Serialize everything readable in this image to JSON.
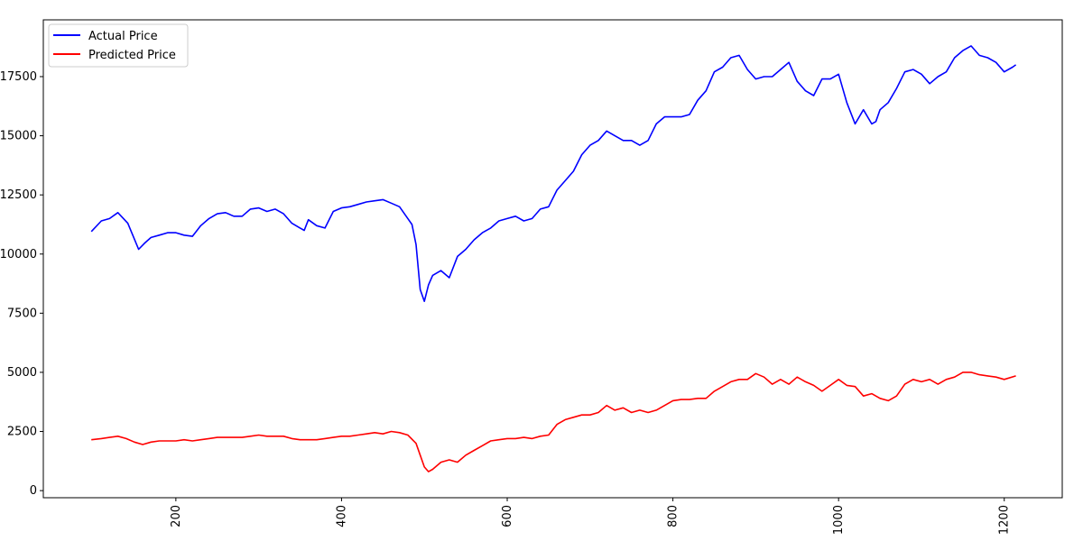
{
  "chart_data": {
    "type": "line",
    "title": "",
    "xlabel": "",
    "ylabel": "",
    "xlim": [
      40,
      1270
    ],
    "ylim": [
      -300,
      19900
    ],
    "x_ticks": [
      200,
      400,
      600,
      800,
      1000,
      1200
    ],
    "x_tick_labels": [
      "200",
      "400",
      "600",
      "800",
      "1000",
      "1200"
    ],
    "y_ticks": [
      0,
      2500,
      5000,
      7500,
      10000,
      12500,
      15000,
      17500
    ],
    "y_tick_labels": [
      "0",
      "2500",
      "5000",
      "7500",
      "10000",
      "12500",
      "15000",
      "17500"
    ],
    "x_tick_rotation": 90,
    "grid": false,
    "legend_position": "top-left",
    "series": [
      {
        "name": "Actual Price",
        "color": "#0000ff",
        "x": [
          98,
          110,
          120,
          130,
          142,
          148,
          155,
          162,
          170,
          180,
          190,
          200,
          210,
          220,
          230,
          240,
          250,
          260,
          270,
          280,
          290,
          300,
          310,
          320,
          330,
          340,
          350,
          355,
          360,
          370,
          380,
          390,
          400,
          410,
          420,
          430,
          440,
          450,
          460,
          470,
          480,
          485,
          490,
          495,
          500,
          505,
          510,
          520,
          530,
          540,
          550,
          560,
          570,
          580,
          590,
          600,
          610,
          620,
          630,
          640,
          650,
          660,
          670,
          680,
          690,
          700,
          710,
          720,
          730,
          740,
          750,
          760,
          770,
          780,
          790,
          800,
          810,
          820,
          830,
          840,
          850,
          860,
          870,
          880,
          890,
          900,
          910,
          920,
          930,
          940,
          950,
          960,
          970,
          980,
          990,
          1000,
          1010,
          1020,
          1030,
          1040,
          1045,
          1050,
          1060,
          1070,
          1080,
          1090,
          1100,
          1110,
          1120,
          1130,
          1140,
          1150,
          1160,
          1170,
          1180,
          1190,
          1200,
          1210,
          1214
        ],
        "y": [
          10950,
          11400,
          11500,
          11750,
          11300,
          10800,
          10200,
          10450,
          10700,
          10800,
          10900,
          10900,
          10800,
          10750,
          11200,
          11500,
          11700,
          11750,
          11600,
          11600,
          11900,
          11950,
          11800,
          11900,
          11700,
          11300,
          11100,
          11000,
          11450,
          11200,
          11100,
          11800,
          11950,
          12000,
          12100,
          12200,
          12250,
          12300,
          12150,
          12000,
          11500,
          11250,
          10400,
          8500,
          8000,
          8700,
          9100,
          9300,
          9000,
          9900,
          10200,
          10600,
          10900,
          11100,
          11400,
          11500,
          11600,
          11400,
          11500,
          11900,
          12000,
          12700,
          13100,
          13500,
          14200,
          14600,
          14800,
          15200,
          15000,
          14800,
          14800,
          14600,
          14800,
          15500,
          15800,
          15800,
          15800,
          15900,
          16500,
          16900,
          17700,
          17900,
          18300,
          18400,
          17800,
          17400,
          17500,
          17500,
          17800,
          18100,
          17300,
          16900,
          16700,
          17400,
          17400,
          17600,
          16400,
          15500,
          16100,
          15500,
          15600,
          16100,
          16400,
          17000,
          17700,
          17800,
          17600,
          17200,
          17500,
          17700,
          18300,
          18600,
          18800,
          18400,
          18300,
          18100,
          17700,
          17900,
          18000
        ]
      },
      {
        "name": "Predicted Price",
        "color": "#ff0000",
        "x": [
          98,
          110,
          120,
          130,
          140,
          150,
          160,
          170,
          180,
          190,
          200,
          210,
          220,
          230,
          240,
          250,
          260,
          270,
          280,
          290,
          300,
          310,
          320,
          330,
          340,
          350,
          360,
          370,
          380,
          390,
          400,
          410,
          420,
          430,
          440,
          450,
          460,
          470,
          480,
          490,
          495,
          500,
          505,
          510,
          520,
          530,
          540,
          550,
          560,
          570,
          580,
          590,
          600,
          610,
          620,
          630,
          640,
          650,
          660,
          670,
          680,
          690,
          700,
          710,
          720,
          730,
          740,
          750,
          760,
          770,
          780,
          790,
          800,
          810,
          820,
          830,
          840,
          850,
          860,
          870,
          880,
          890,
          900,
          910,
          920,
          930,
          940,
          950,
          960,
          970,
          980,
          990,
          1000,
          1010,
          1020,
          1030,
          1040,
          1050,
          1060,
          1070,
          1080,
          1090,
          1100,
          1110,
          1120,
          1130,
          1140,
          1150,
          1160,
          1170,
          1180,
          1190,
          1200,
          1214
        ],
        "y": [
          2150,
          2200,
          2250,
          2300,
          2200,
          2050,
          1950,
          2050,
          2100,
          2100,
          2100,
          2150,
          2100,
          2150,
          2200,
          2250,
          2250,
          2250,
          2250,
          2300,
          2350,
          2300,
          2300,
          2300,
          2200,
          2150,
          2150,
          2150,
          2200,
          2250,
          2300,
          2300,
          2350,
          2400,
          2450,
          2400,
          2500,
          2450,
          2350,
          2000,
          1500,
          1000,
          800,
          900,
          1200,
          1300,
          1200,
          1500,
          1700,
          1900,
          2100,
          2150,
          2200,
          2200,
          2250,
          2200,
          2300,
          2350,
          2800,
          3000,
          3100,
          3200,
          3200,
          3300,
          3600,
          3400,
          3500,
          3300,
          3400,
          3300,
          3400,
          3600,
          3800,
          3850,
          3850,
          3900,
          3900,
          4200,
          4400,
          4600,
          4700,
          4700,
          4950,
          4800,
          4500,
          4700,
          4500,
          4800,
          4600,
          4450,
          4200,
          4450,
          4700,
          4450,
          4400,
          4000,
          4100,
          3900,
          3800,
          4000,
          4500,
          4700,
          4600,
          4700,
          4500,
          4700,
          4800,
          5000,
          5000,
          4900,
          4850,
          4800,
          4700,
          4850
        ]
      }
    ]
  }
}
